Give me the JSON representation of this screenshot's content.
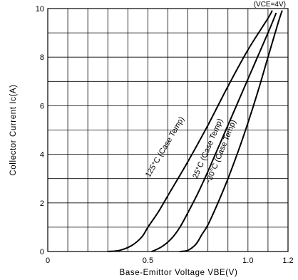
{
  "chart_data": {
    "type": "line",
    "xlabel": "Base-Emittor Voltage VBE(V)",
    "ylabel": "Collector Current Ic(A)",
    "condition": "(VCE=4V)",
    "xlim": [
      0,
      1.2
    ],
    "ylim": [
      0,
      10
    ],
    "x_ticks": [
      "0",
      "0.5",
      "1.0",
      "1.2"
    ],
    "y_ticks": [
      "0",
      "2",
      "4",
      "6",
      "8",
      "10"
    ],
    "grid": true,
    "series": [
      {
        "name": "125°C (Case Temp)",
        "x": [
          0.3,
          0.36,
          0.42,
          0.47,
          0.5,
          0.55,
          0.6,
          0.7,
          0.8,
          0.9,
          1.0,
          1.1,
          1.12
        ],
        "y": [
          0.0,
          0.05,
          0.25,
          0.6,
          1.0,
          1.6,
          2.3,
          3.7,
          5.2,
          6.8,
          8.3,
          9.6,
          9.9
        ]
      },
      {
        "name": "25°C (Case Temp)",
        "x": [
          0.52,
          0.57,
          0.62,
          0.66,
          0.7,
          0.75,
          0.8,
          0.9,
          1.0,
          1.1,
          1.14
        ],
        "y": [
          0.0,
          0.2,
          0.55,
          1.0,
          1.6,
          2.4,
          3.3,
          5.2,
          7.1,
          9.0,
          9.8
        ]
      },
      {
        "name": "−30°C (Case Temp)",
        "x": [
          0.66,
          0.7,
          0.74,
          0.77,
          0.8,
          0.85,
          0.9,
          0.95,
          1.0,
          1.05,
          1.1,
          1.15,
          1.17
        ],
        "y": [
          0.0,
          0.05,
          0.3,
          0.7,
          1.1,
          2.0,
          3.0,
          4.1,
          5.3,
          6.6,
          8.0,
          9.4,
          9.9
        ]
      }
    ]
  }
}
